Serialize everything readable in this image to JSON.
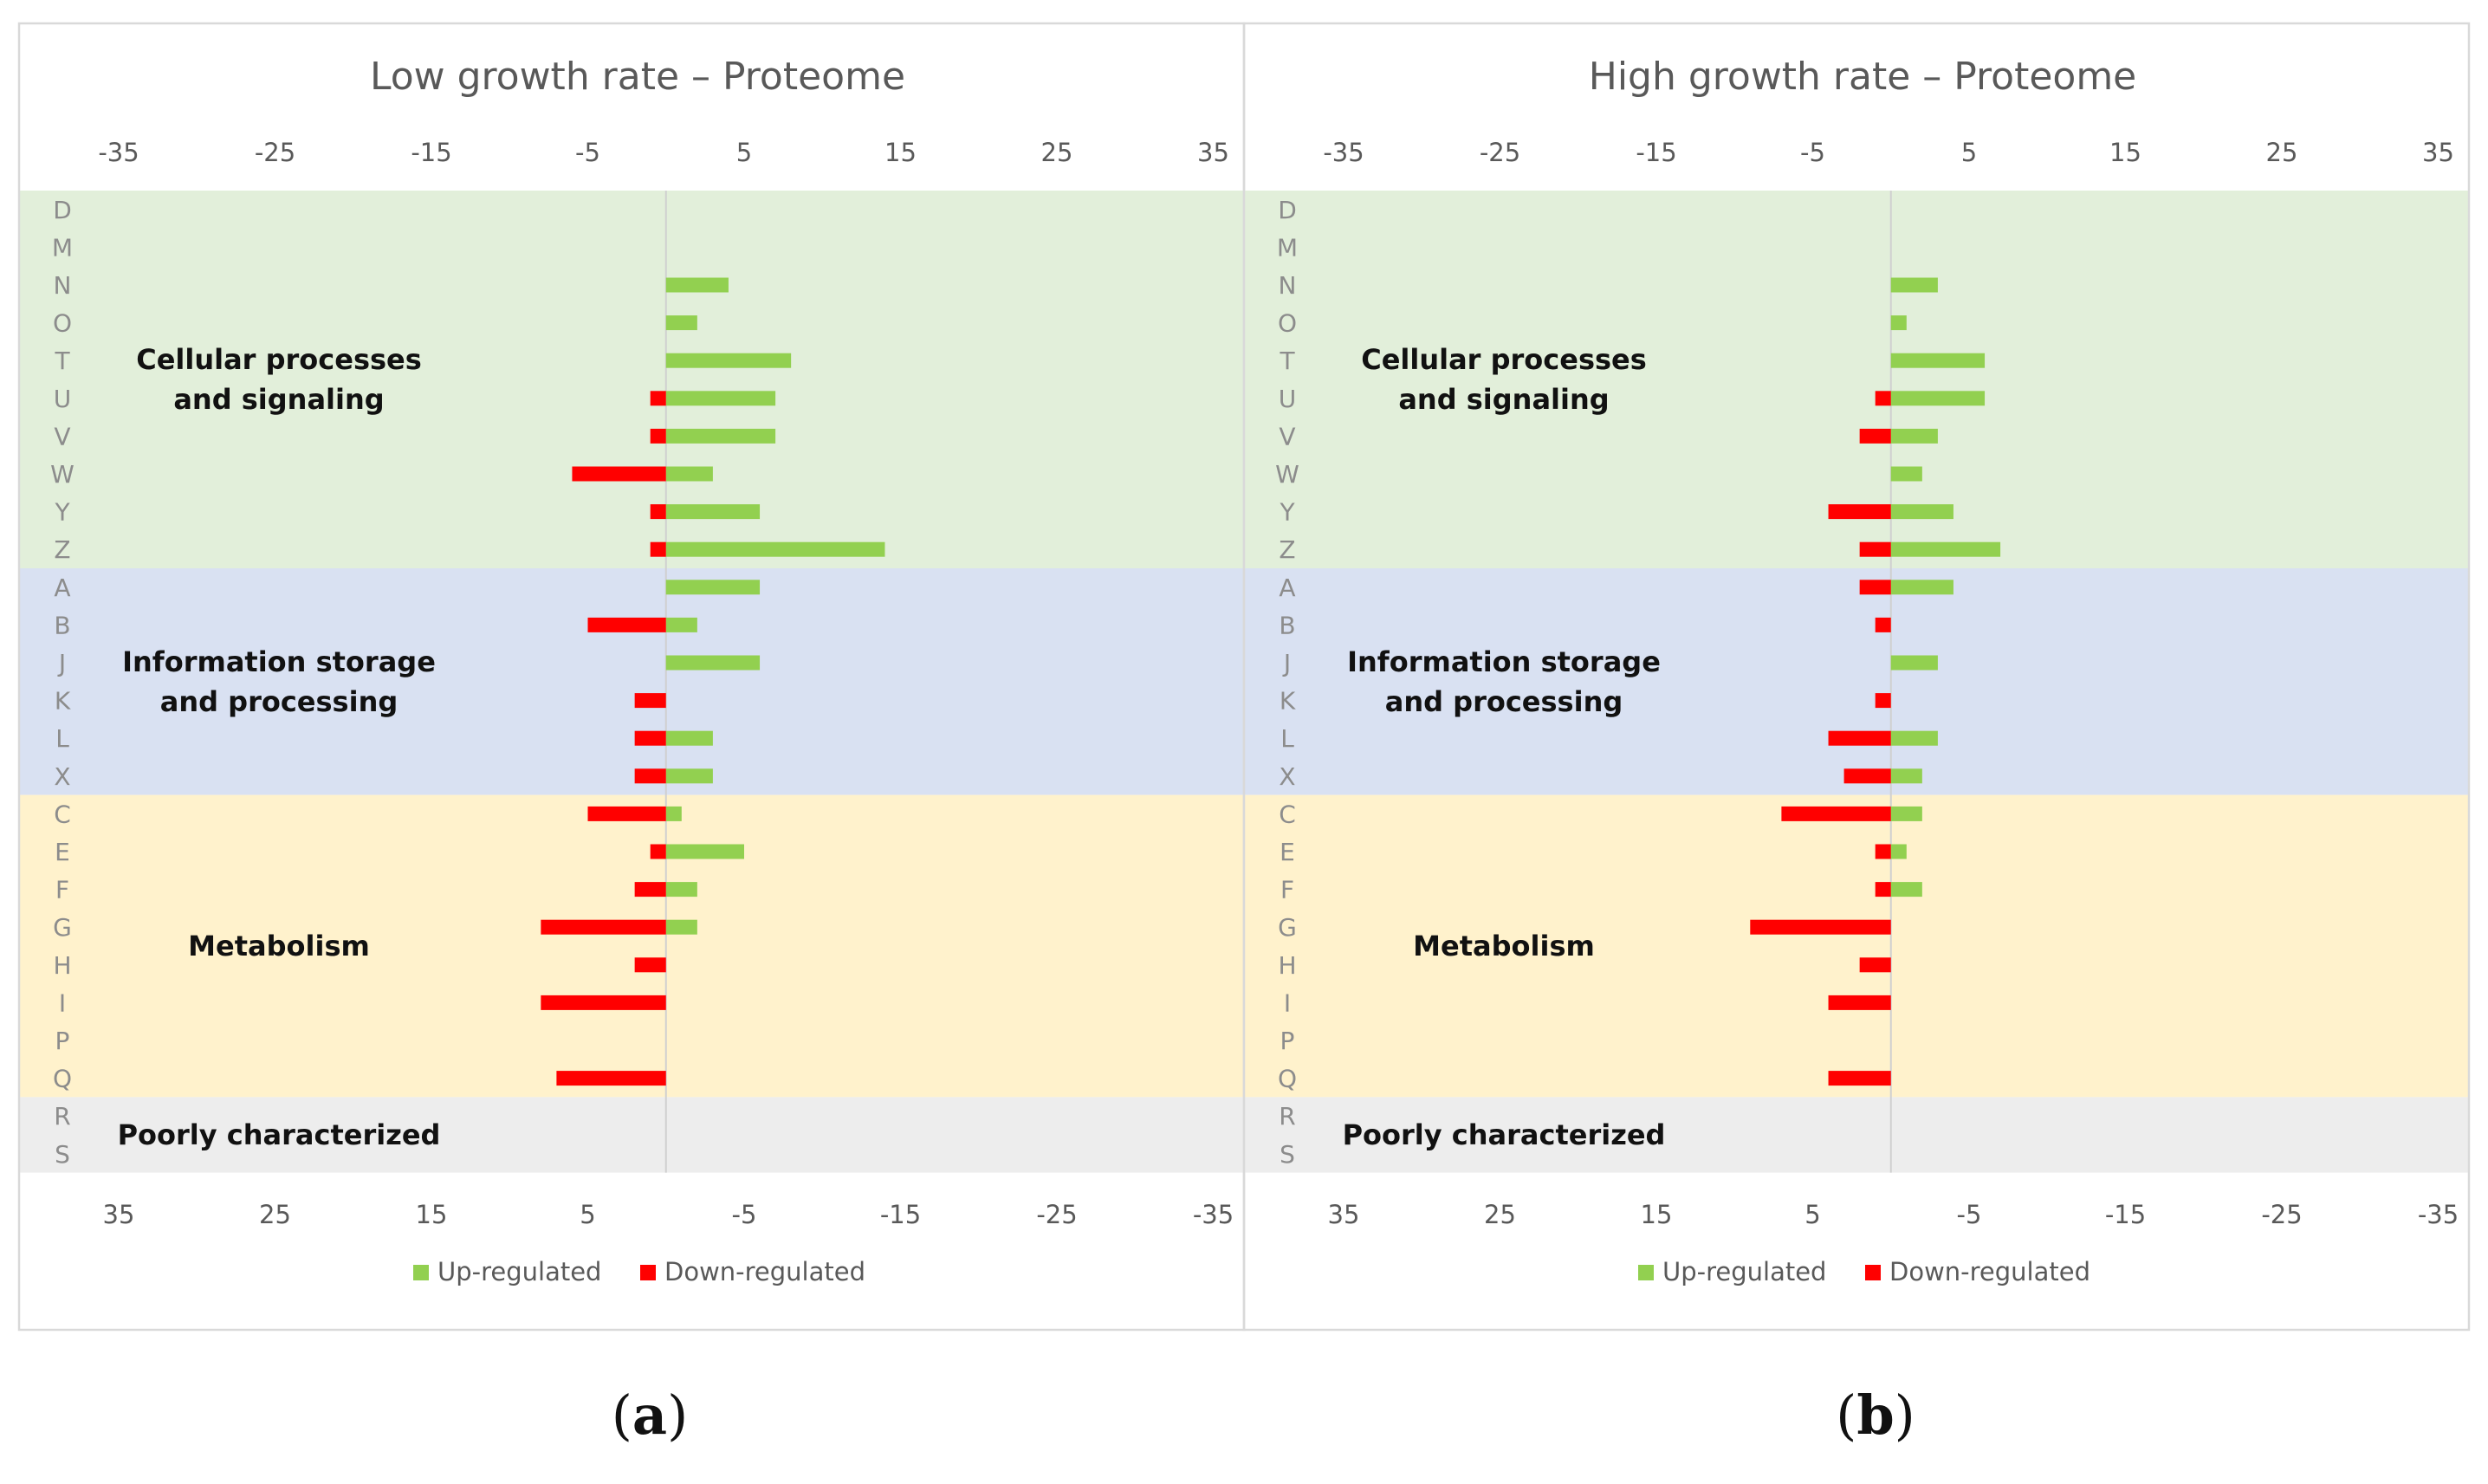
{
  "chart_data": [
    {
      "type": "bar",
      "title": "Low growth rate – Proteome",
      "subfigure_label": "a",
      "top_axis_ticks": [
        "-35",
        "-25",
        "-15",
        "-5",
        "5",
        "15",
        "25",
        "35"
      ],
      "bottom_axis_ticks": [
        "35",
        "25",
        "15",
        "5",
        "-5",
        "-15",
        "-25",
        "-35"
      ],
      "xlim": [
        -35,
        35
      ],
      "categories": [
        "D",
        "M",
        "N",
        "O",
        "T",
        "U",
        "V",
        "W",
        "Y",
        "Z",
        "A",
        "B",
        "J",
        "K",
        "L",
        "X",
        "C",
        "E",
        "F",
        "G",
        "H",
        "I",
        "P",
        "Q",
        "R",
        "S"
      ],
      "groups": [
        {
          "name_lines": [
            "Cellular processes",
            "and signaling"
          ],
          "categories": [
            "D",
            "M",
            "N",
            "O",
            "T",
            "U",
            "V",
            "W",
            "Y",
            "Z"
          ],
          "color": "#e2efda"
        },
        {
          "name_lines": [
            "Information storage",
            "and processing"
          ],
          "categories": [
            "A",
            "B",
            "J",
            "K",
            "L",
            "X"
          ],
          "color": "#d9e1f2"
        },
        {
          "name_lines": [
            "Metabolism"
          ],
          "categories": [
            "C",
            "E",
            "F",
            "G",
            "H",
            "I",
            "P",
            "Q"
          ],
          "color": "#fff2cc"
        },
        {
          "name_lines": [
            "Poorly characterized"
          ],
          "categories": [
            "R",
            "S"
          ],
          "color": "#ededed"
        }
      ],
      "series": [
        {
          "name": "Up-regulated",
          "color": "#92d050",
          "values": [
            0,
            0,
            4,
            2,
            8,
            7,
            7,
            3,
            6,
            14,
            6,
            2,
            6,
            0,
            3,
            3,
            1,
            5,
            2,
            2,
            0,
            0,
            0,
            0,
            0,
            0
          ]
        },
        {
          "name": "Down-regulated",
          "color": "#ff0000",
          "values": [
            0,
            0,
            0,
            0,
            0,
            1,
            1,
            6,
            1,
            1,
            0,
            5,
            0,
            2,
            2,
            2,
            5,
            1,
            2,
            8,
            2,
            8,
            0,
            7,
            0,
            0
          ]
        }
      ],
      "legend_position": "bottom"
    },
    {
      "type": "bar",
      "title": "High growth rate – Proteome",
      "subfigure_label": "b",
      "top_axis_ticks": [
        "-35",
        "-25",
        "-15",
        "-5",
        "5",
        "15",
        "25",
        "35"
      ],
      "bottom_axis_ticks": [
        "35",
        "25",
        "15",
        "5",
        "-5",
        "-15",
        "-25",
        "-35"
      ],
      "xlim": [
        -35,
        35
      ],
      "categories": [
        "D",
        "M",
        "N",
        "O",
        "T",
        "U",
        "V",
        "W",
        "Y",
        "Z",
        "A",
        "B",
        "J",
        "K",
        "L",
        "X",
        "C",
        "E",
        "F",
        "G",
        "H",
        "I",
        "P",
        "Q",
        "R",
        "S"
      ],
      "groups": [
        {
          "name_lines": [
            "Cellular processes",
            "and signaling"
          ],
          "categories": [
            "D",
            "M",
            "N",
            "O",
            "T",
            "U",
            "V",
            "W",
            "Y",
            "Z"
          ],
          "color": "#e2efda"
        },
        {
          "name_lines": [
            "Information storage",
            "and processing"
          ],
          "categories": [
            "A",
            "B",
            "J",
            "K",
            "L",
            "X"
          ],
          "color": "#d9e1f2"
        },
        {
          "name_lines": [
            "Metabolism"
          ],
          "categories": [
            "C",
            "E",
            "F",
            "G",
            "H",
            "I",
            "P",
            "Q"
          ],
          "color": "#fff2cc"
        },
        {
          "name_lines": [
            "Poorly characterized"
          ],
          "categories": [
            "R",
            "S"
          ],
          "color": "#ededed"
        }
      ],
      "series": [
        {
          "name": "Up-regulated",
          "color": "#92d050",
          "values": [
            0,
            0,
            3,
            1,
            6,
            6,
            3,
            2,
            4,
            7,
            4,
            0,
            3,
            0,
            3,
            2,
            2,
            1,
            2,
            0,
            0,
            0,
            0,
            0,
            0,
            0
          ]
        },
        {
          "name": "Down-regulated",
          "color": "#ff0000",
          "values": [
            0,
            0,
            0,
            0,
            0,
            1,
            2,
            0,
            4,
            2,
            2,
            1,
            0,
            1,
            4,
            3,
            7,
            1,
            1,
            9,
            2,
            4,
            0,
            4,
            0,
            0
          ]
        }
      ],
      "legend_position": "bottom"
    }
  ]
}
